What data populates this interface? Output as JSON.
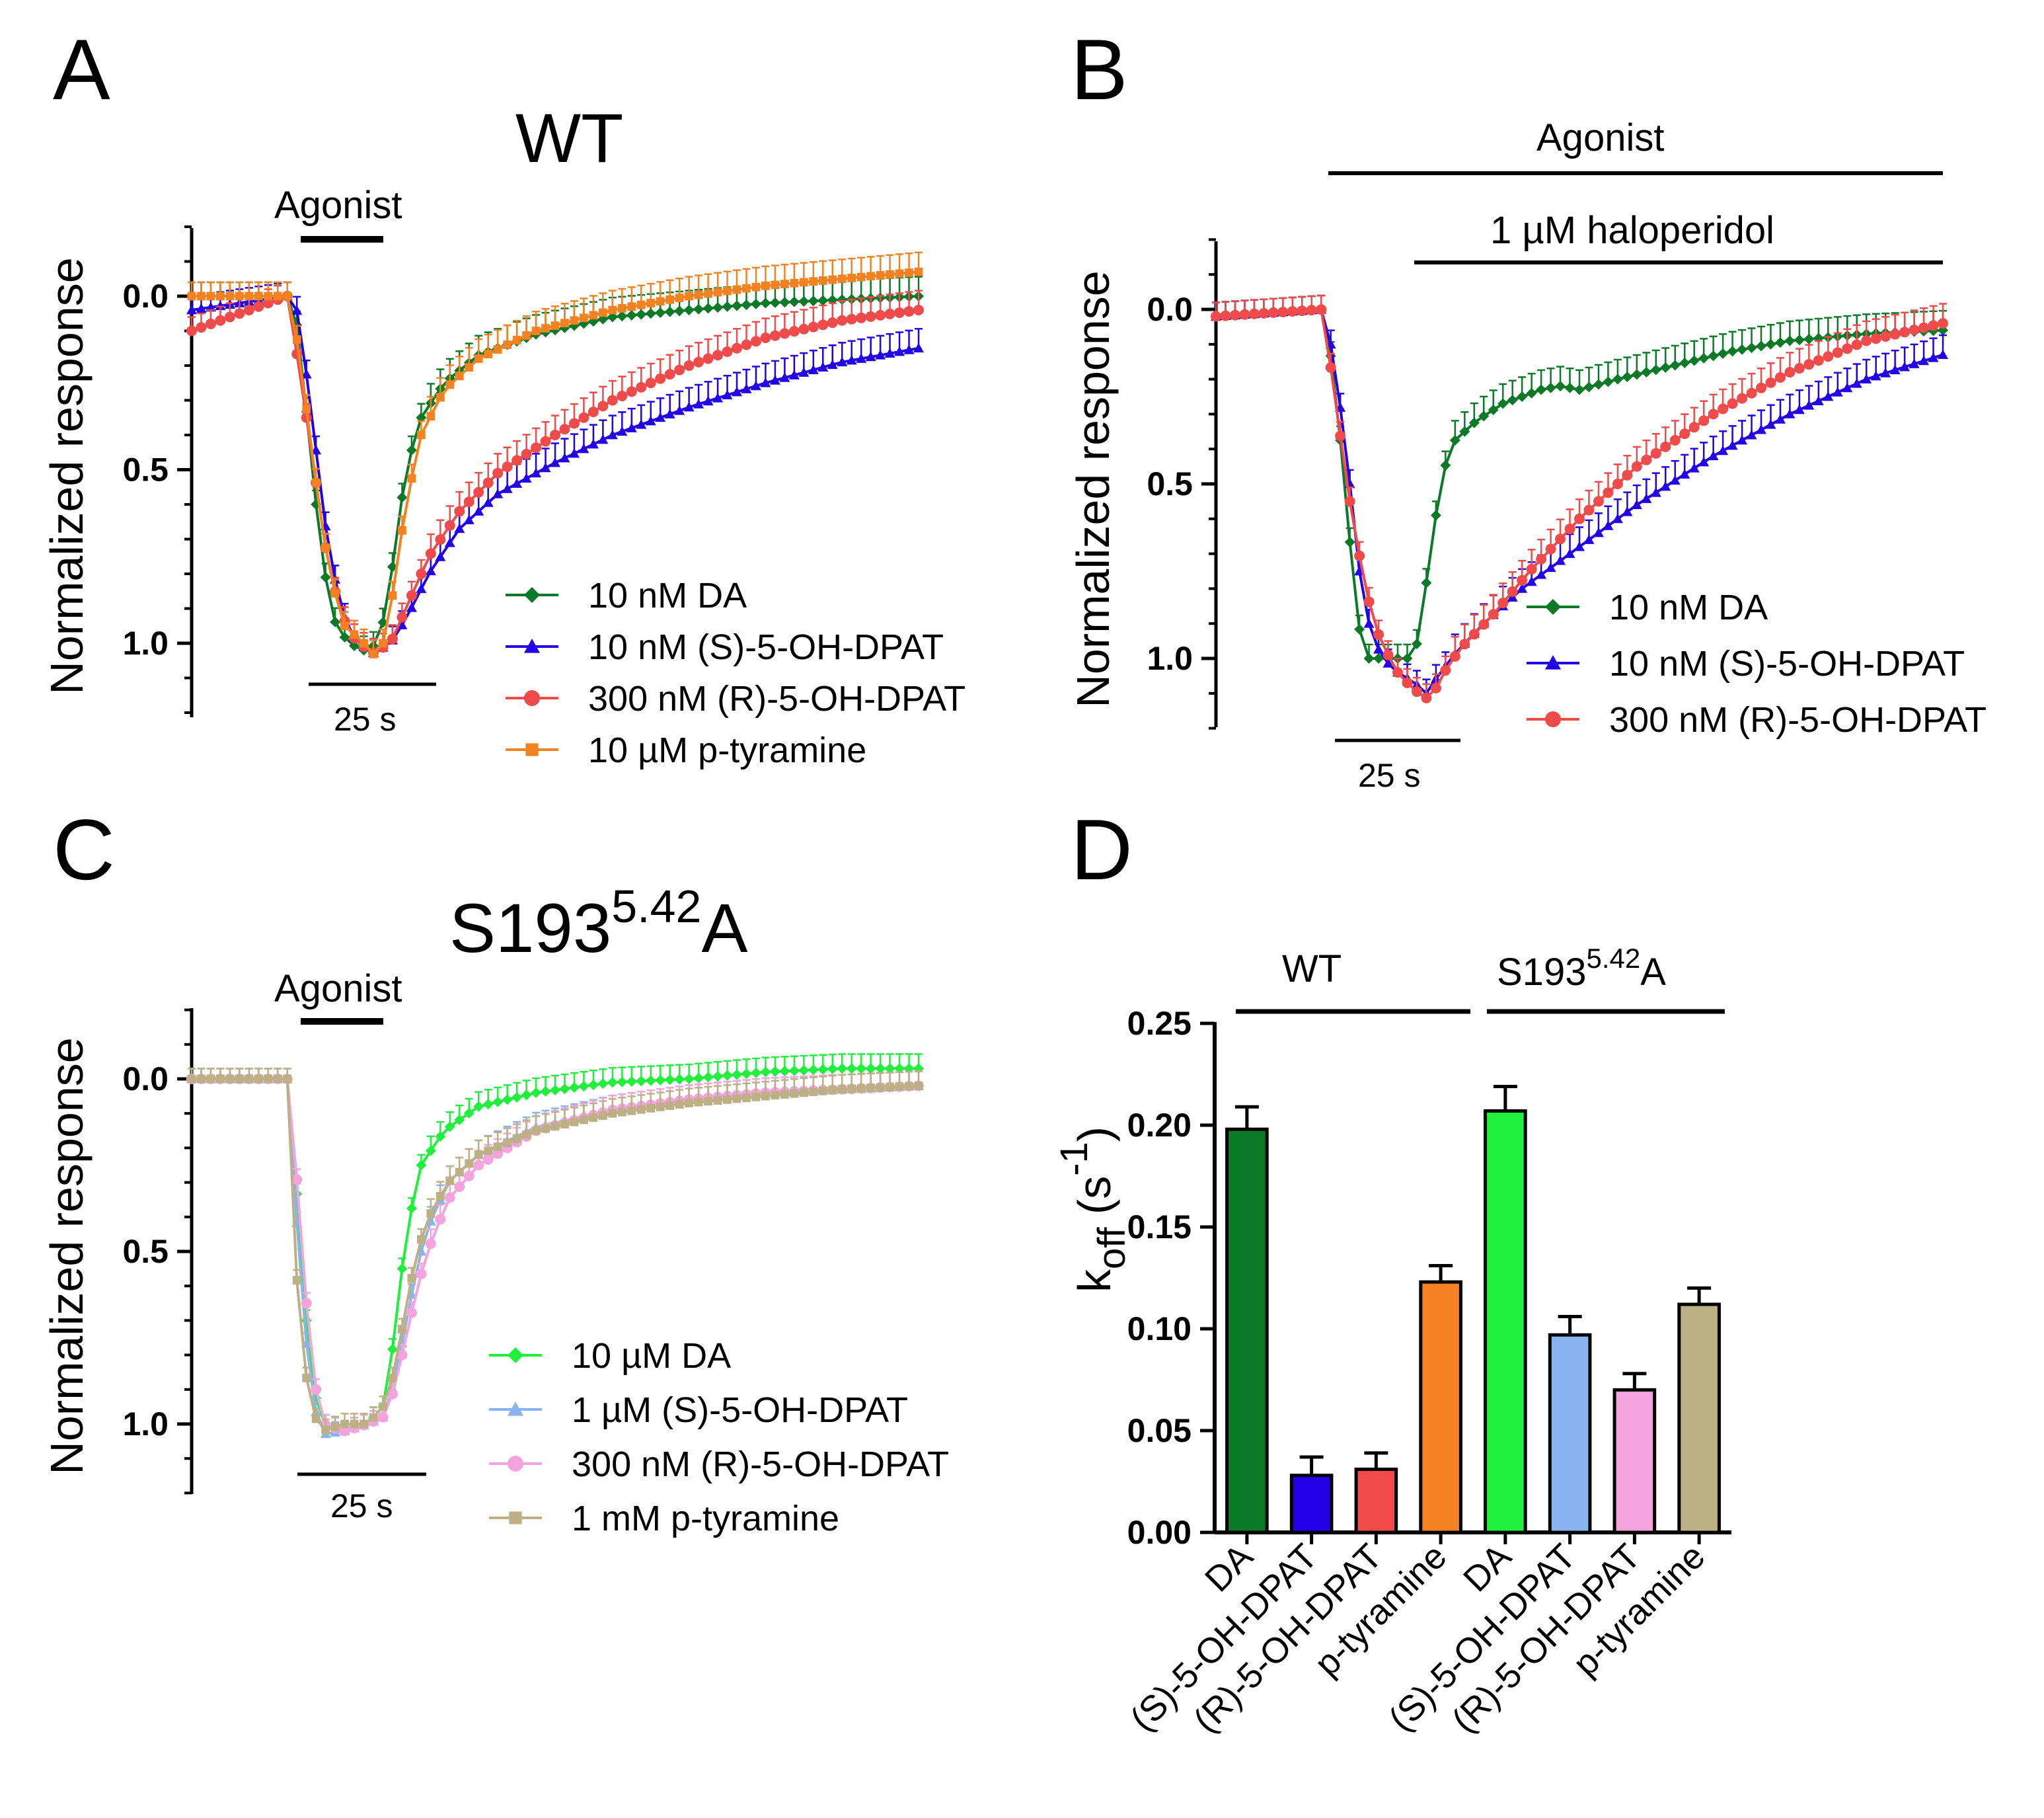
{
  "panels": {
    "A": {
      "letter": "A",
      "title": "WT",
      "ylabel": "Normalized response",
      "agonist_label": "Agonist",
      "scale_label": "25 s",
      "yticks": [
        "0.0",
        "0.5",
        "1.0"
      ],
      "legend": [
        "10 nM DA",
        "10 nM (S)-5-OH-DPAT",
        "300 nM (R)-5-OH-DPAT",
        "10 µM p-tyramine"
      ]
    },
    "B": {
      "letter": "B",
      "ylabel": "Normalized response",
      "agonist_label": "Agonist",
      "haloperidol_label": "1 µM haloperidol",
      "scale_label": "25 s",
      "yticks": [
        "0.0",
        "0.5",
        "1.0"
      ],
      "legend": [
        "10 nM DA",
        "10 nM (S)-5-OH-DPAT",
        "300 nM (R)-5-OH-DPAT"
      ]
    },
    "C": {
      "letter": "C",
      "title_main": "S193",
      "title_sup": "5.42",
      "title_end": "A",
      "ylabel": "Normalized response",
      "agonist_label": "Agonist",
      "scale_label": "25 s",
      "yticks": [
        "0.0",
        "0.5",
        "1.0"
      ],
      "legend": [
        "10 µM DA",
        "1 µM (S)-5-OH-DPAT",
        "300 nM (R)-5-OH-DPAT",
        "1 mM p-tyramine"
      ]
    },
    "D": {
      "letter": "D",
      "ylabel_main": "k",
      "ylabel_sub": "off",
      "ylabel_unit_open": " (s",
      "ylabel_sup": "-1",
      "ylabel_unit_close": ")",
      "group_wt": "WT",
      "group_mut_main": "S193",
      "group_mut_sup": "5.42",
      "group_mut_end": "A",
      "yticks": [
        "0.00",
        "0.05",
        "0.10",
        "0.15",
        "0.20",
        "0.25"
      ]
    }
  },
  "colors": {
    "dark_green": "#0a7a26",
    "blue": "#2200e8",
    "red": "#f04a4a",
    "orange": "#f58220",
    "bright_green": "#1ef03c",
    "light_blue": "#8ab4f0",
    "pink": "#f5a3df",
    "khaki": "#bdb084"
  },
  "chart_data": [
    {
      "panel": "A",
      "type": "line",
      "title": "WT",
      "ylabel": "Normalized response",
      "ylim": [
        1.2,
        -0.2
      ],
      "xunits": "seconds",
      "xlim": [
        0,
        190
      ],
      "series": [
        {
          "name": "10 nM DA",
          "color": "#0a7a26",
          "marker": "diamond",
          "points": [
            [
              0,
              0.0
            ],
            [
              25,
              0.0
            ],
            [
              28,
              0.1
            ],
            [
              31,
              0.45
            ],
            [
              34,
              0.75
            ],
            [
              37,
              0.93
            ],
            [
              41,
              1.0
            ],
            [
              45,
              1.02
            ],
            [
              49,
              1.0
            ],
            [
              52,
              0.82
            ],
            [
              56,
              0.5
            ],
            [
              60,
              0.35
            ],
            [
              66,
              0.25
            ],
            [
              75,
              0.17
            ],
            [
              90,
              0.11
            ],
            [
              110,
              0.06
            ],
            [
              130,
              0.04
            ],
            [
              150,
              0.02
            ],
            [
              170,
              0.01
            ],
            [
              190,
              0.0
            ]
          ]
        },
        {
          "name": "10 nM (S)-5-OH-DPAT",
          "color": "#2200e8",
          "marker": "triangle",
          "points": [
            [
              0,
              0.04
            ],
            [
              25,
              0.0
            ],
            [
              28,
              0.05
            ],
            [
              32,
              0.4
            ],
            [
              36,
              0.75
            ],
            [
              41,
              0.97
            ],
            [
              47,
              1.03
            ],
            [
              52,
              1.0
            ],
            [
              56,
              0.93
            ],
            [
              62,
              0.8
            ],
            [
              70,
              0.67
            ],
            [
              80,
              0.57
            ],
            [
              95,
              0.48
            ],
            [
              110,
              0.4
            ],
            [
              130,
              0.32
            ],
            [
              150,
              0.25
            ],
            [
              170,
              0.19
            ],
            [
              190,
              0.15
            ]
          ]
        },
        {
          "name": "300 nM (R)-5-OH-DPAT",
          "color": "#f04a4a",
          "marker": "circle",
          "points": [
            [
              0,
              0.1
            ],
            [
              25,
              0.0
            ],
            [
              28,
              0.2
            ],
            [
              32,
              0.5
            ],
            [
              36,
              0.8
            ],
            [
              41,
              0.97
            ],
            [
              47,
              1.03
            ],
            [
              52,
              1.0
            ],
            [
              56,
              0.9
            ],
            [
              62,
              0.75
            ],
            [
              70,
              0.62
            ],
            [
              80,
              0.51
            ],
            [
              95,
              0.4
            ],
            [
              110,
              0.3
            ],
            [
              130,
              0.2
            ],
            [
              150,
              0.12
            ],
            [
              170,
              0.07
            ],
            [
              190,
              0.04
            ]
          ]
        },
        {
          "name": "10 µM p-tyramine",
          "color": "#f58220",
          "marker": "square",
          "points": [
            [
              0,
              0.0
            ],
            [
              25,
              0.0
            ],
            [
              28,
              0.15
            ],
            [
              32,
              0.5
            ],
            [
              36,
              0.8
            ],
            [
              40,
              0.95
            ],
            [
              45,
              1.0
            ],
            [
              49,
              1.05
            ],
            [
              52,
              0.9
            ],
            [
              56,
              0.6
            ],
            [
              60,
              0.4
            ],
            [
              66,
              0.27
            ],
            [
              75,
              0.18
            ],
            [
              90,
              0.1
            ],
            [
              110,
              0.04
            ],
            [
              130,
              0.0
            ],
            [
              150,
              -0.03
            ],
            [
              170,
              -0.05
            ],
            [
              190,
              -0.07
            ]
          ]
        }
      ],
      "error_bars": {
        "size": 0.04
      }
    },
    {
      "panel": "B",
      "type": "line",
      "ylabel": "Normalized response",
      "ylim": [
        1.2,
        -0.2
      ],
      "xunits": "seconds",
      "xlim": [
        0,
        190
      ],
      "series": [
        {
          "name": "10 nM DA",
          "color": "#0a7a26",
          "marker": "diamond",
          "points": [
            [
              0,
              0.02
            ],
            [
              28,
              0.0
            ],
            [
              31,
              0.2
            ],
            [
              34,
              0.55
            ],
            [
              37,
              0.9
            ],
            [
              40,
              1.0
            ],
            [
              45,
              1.0
            ],
            [
              50,
              1.0
            ],
            [
              53,
              0.95
            ],
            [
              56,
              0.7
            ],
            [
              59,
              0.48
            ],
            [
              62,
              0.38
            ],
            [
              68,
              0.32
            ],
            [
              75,
              0.27
            ],
            [
              85,
              0.23
            ],
            [
              90,
              0.22
            ],
            [
              95,
              0.23
            ],
            [
              105,
              0.2
            ],
            [
              120,
              0.16
            ],
            [
              135,
              0.12
            ],
            [
              150,
              0.09
            ],
            [
              170,
              0.07
            ],
            [
              190,
              0.06
            ]
          ]
        },
        {
          "name": "10 nM (S)-5-OH-DPAT",
          "color": "#2200e8",
          "marker": "triangle",
          "points": [
            [
              0,
              0.02
            ],
            [
              28,
              0.0
            ],
            [
              31,
              0.15
            ],
            [
              35,
              0.5
            ],
            [
              38,
              0.8
            ],
            [
              41,
              0.95
            ],
            [
              46,
              1.03
            ],
            [
              52,
              1.07
            ],
            [
              55,
              1.1
            ],
            [
              58,
              1.05
            ],
            [
              63,
              0.98
            ],
            [
              70,
              0.9
            ],
            [
              80,
              0.8
            ],
            [
              95,
              0.68
            ],
            [
              110,
              0.56
            ],
            [
              130,
              0.42
            ],
            [
              150,
              0.3
            ],
            [
              170,
              0.2
            ],
            [
              190,
              0.13
            ]
          ]
        },
        {
          "name": "300 nM (R)-5-OH-DPAT",
          "color": "#f04a4a",
          "marker": "circle",
          "points": [
            [
              0,
              0.02
            ],
            [
              28,
              0.0
            ],
            [
              31,
              0.25
            ],
            [
              35,
              0.55
            ],
            [
              39,
              0.8
            ],
            [
              43,
              0.95
            ],
            [
              48,
              1.05
            ],
            [
              53,
              1.1
            ],
            [
              56,
              1.12
            ],
            [
              59,
              1.05
            ],
            [
              64,
              0.97
            ],
            [
              72,
              0.88
            ],
            [
              82,
              0.75
            ],
            [
              95,
              0.6
            ],
            [
              110,
              0.45
            ],
            [
              130,
              0.3
            ],
            [
              150,
              0.18
            ],
            [
              170,
              0.09
            ],
            [
              190,
              0.04
            ]
          ]
        }
      ],
      "error_bars": {
        "size": 0.04
      }
    },
    {
      "panel": "C",
      "type": "line",
      "title": "S193 5.42 A",
      "ylabel": "Normalized response",
      "ylim": [
        1.2,
        -0.2
      ],
      "xunits": "seconds",
      "xlim": [
        0,
        190
      ],
      "series": [
        {
          "name": "10 µM DA",
          "color": "#1ef03c",
          "marker": "diamond",
          "points": [
            [
              0,
              0.0
            ],
            [
              25,
              0.0
            ],
            [
              28,
              0.4
            ],
            [
              31,
              0.85
            ],
            [
              34,
              1.0
            ],
            [
              40,
              1.02
            ],
            [
              46,
              1.0
            ],
            [
              50,
              0.95
            ],
            [
              53,
              0.75
            ],
            [
              56,
              0.45
            ],
            [
              60,
              0.25
            ],
            [
              66,
              0.15
            ],
            [
              75,
              0.08
            ],
            [
              90,
              0.04
            ],
            [
              110,
              0.01
            ],
            [
              130,
              0.0
            ],
            [
              150,
              -0.02
            ],
            [
              170,
              -0.03
            ],
            [
              190,
              -0.03
            ]
          ]
        },
        {
          "name": "1 µM (S)-5-OH-DPAT",
          "color": "#8ab4f0",
          "marker": "triangle",
          "points": [
            [
              0,
              0.0
            ],
            [
              25,
              0.0
            ],
            [
              28,
              0.5
            ],
            [
              31,
              0.9
            ],
            [
              34,
              1.03
            ],
            [
              40,
              1.02
            ],
            [
              46,
              1.0
            ],
            [
              50,
              0.98
            ],
            [
              53,
              0.88
            ],
            [
              57,
              0.65
            ],
            [
              61,
              0.45
            ],
            [
              67,
              0.3
            ],
            [
              75,
              0.22
            ],
            [
              90,
              0.14
            ],
            [
              110,
              0.09
            ],
            [
              130,
              0.06
            ],
            [
              150,
              0.04
            ],
            [
              170,
              0.03
            ],
            [
              190,
              0.02
            ]
          ]
        },
        {
          "name": "300 nM (R)-5-OH-DPAT",
          "color": "#f5a3df",
          "marker": "circle",
          "points": [
            [
              0,
              0.0
            ],
            [
              25,
              0.0
            ],
            [
              28,
              0.35
            ],
            [
              31,
              0.8
            ],
            [
              34,
              1.0
            ],
            [
              40,
              1.02
            ],
            [
              46,
              1.0
            ],
            [
              50,
              0.98
            ],
            [
              53,
              0.9
            ],
            [
              57,
              0.7
            ],
            [
              61,
              0.52
            ],
            [
              67,
              0.35
            ],
            [
              75,
              0.25
            ],
            [
              90,
              0.15
            ],
            [
              110,
              0.09
            ],
            [
              130,
              0.06
            ],
            [
              150,
              0.04
            ],
            [
              170,
              0.03
            ],
            [
              190,
              0.02
            ]
          ]
        },
        {
          "name": "1 mM p-tyramine",
          "color": "#bdb084",
          "marker": "square",
          "points": [
            [
              0,
              0.0
            ],
            [
              25,
              0.0
            ],
            [
              28,
              0.7
            ],
            [
              31,
              0.95
            ],
            [
              34,
              1.02
            ],
            [
              40,
              1.0
            ],
            [
              46,
              1.0
            ],
            [
              50,
              0.95
            ],
            [
              53,
              0.85
            ],
            [
              57,
              0.6
            ],
            [
              61,
              0.42
            ],
            [
              67,
              0.3
            ],
            [
              75,
              0.22
            ],
            [
              90,
              0.15
            ],
            [
              110,
              0.1
            ],
            [
              130,
              0.07
            ],
            [
              150,
              0.05
            ],
            [
              170,
              0.03
            ],
            [
              190,
              0.02
            ]
          ]
        }
      ],
      "error_bars": {
        "size": 0.03
      }
    },
    {
      "panel": "D",
      "type": "bar",
      "ylabel": "koff (s-1)",
      "ylim": [
        0,
        0.25
      ],
      "groups": [
        {
          "name": "WT",
          "categories": [
            "DA",
            "(S)-5-OH-DPAT",
            "(R)-5-OH-DPAT",
            "p-tyramine"
          ]
        },
        {
          "name": "S193 5.42 A",
          "categories": [
            "DA",
            "(S)-5-OH-DPAT",
            "(R)-5-OH-DPAT",
            "p-tyramine"
          ]
        }
      ],
      "categories": [
        "DA",
        "(S)-5-OH-DPAT",
        "(R)-5-OH-DPAT",
        "p-tyramine",
        "DA",
        "(S)-5-OH-DPAT",
        "(R)-5-OH-DPAT",
        "p-tyramine"
      ],
      "values": [
        0.198,
        0.028,
        0.031,
        0.123,
        0.207,
        0.097,
        0.07,
        0.112
      ],
      "errors": [
        0.011,
        0.009,
        0.008,
        0.008,
        0.012,
        0.009,
        0.008,
        0.008
      ],
      "colors": [
        "#0a7a26",
        "#2200e8",
        "#f04a4a",
        "#f58220",
        "#1ef03c",
        "#8ab4f0",
        "#f5a3df",
        "#bdb084"
      ]
    }
  ]
}
